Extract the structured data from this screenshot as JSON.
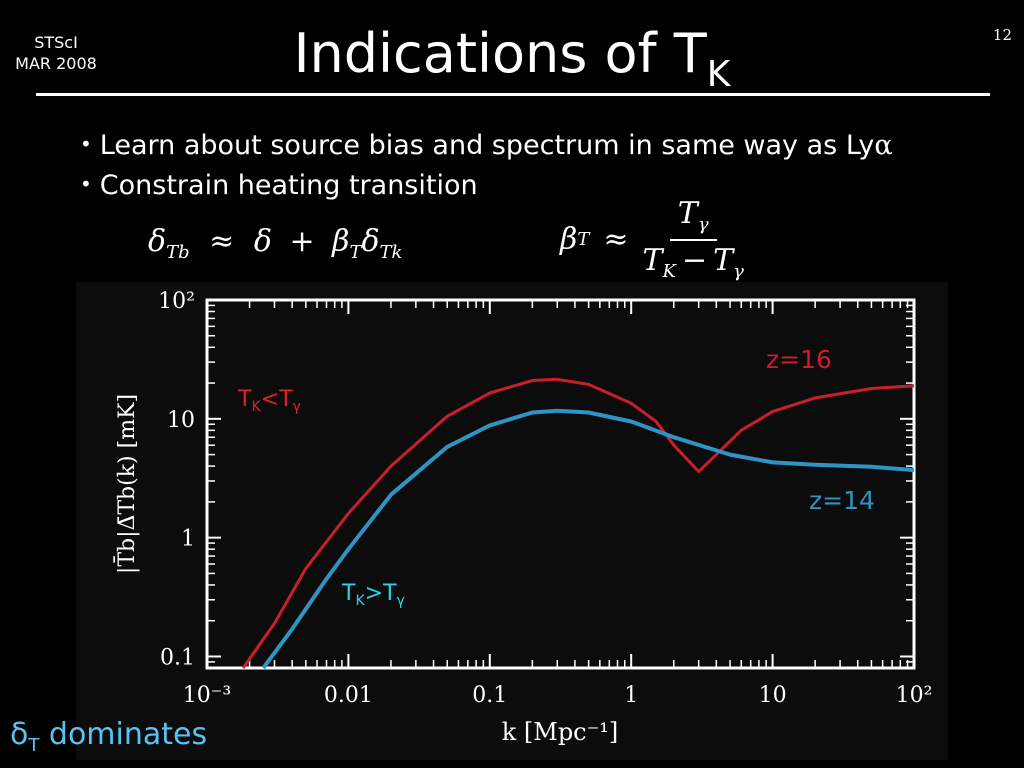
{
  "header": {
    "venue_line1": "STScI",
    "venue_line2": "MAR 2008",
    "title": "Indications of T",
    "title_subscript": "K",
    "page_number": "12"
  },
  "bullets": [
    {
      "text": "Learn about source bias and spectrum in same way as Ly",
      "symbol": "α"
    },
    {
      "text": "Constrain heating transition",
      "symbol": ""
    }
  ],
  "equations": {
    "eq1": {
      "lhs_base": "δ",
      "lhs_sub": "Tb",
      "rel": "≈",
      "rhs_a": "δ",
      "plus": "+",
      "rhs_b": "β",
      "rhs_b_sub": "T",
      "rhs_c": "δ",
      "rhs_c_sub": "Tk"
    },
    "eq2": {
      "lhs": "β",
      "lhs_sub": "T",
      "rel": "≈",
      "num": "T",
      "num_sub": "γ",
      "den_a": "T",
      "den_a_sub": "K",
      "den_minus": "−",
      "den_b": "T",
      "den_b_sub": "γ"
    }
  },
  "footer": {
    "symbol": "δ",
    "symbol_sub": "T",
    "text": "dominates"
  },
  "chart_data": {
    "type": "line",
    "xscale": "log",
    "yscale": "log",
    "xlim": [
      0.001,
      100
    ],
    "ylim": [
      0.08,
      100
    ],
    "xticks": [
      "10⁻³",
      "0.01",
      "0.1",
      "1",
      "10",
      "10²"
    ],
    "yticks": [
      "0.1",
      "1",
      "10",
      "10²"
    ],
    "xlabel": "k [Mpc⁻¹]",
    "ylabel": "|T̄b|Δ̄Tb(k) [mK]",
    "series": [
      {
        "name": "z=16",
        "color": "#c81e2e",
        "x": [
          0.0018,
          0.003,
          0.005,
          0.01,
          0.02,
          0.05,
          0.1,
          0.2,
          0.3,
          0.5,
          1.0,
          1.5,
          2.0,
          3.0,
          4.0,
          6.0,
          10,
          20,
          50,
          100
        ],
        "y": [
          0.08,
          0.19,
          0.55,
          1.6,
          4.0,
          10.5,
          16.5,
          21.0,
          21.5,
          19.5,
          13.5,
          9.5,
          6.0,
          3.6,
          5.0,
          8.0,
          11.5,
          15.0,
          18.0,
          19.0
        ]
      },
      {
        "name": "z=14",
        "color": "#2f93c4",
        "x": [
          0.0025,
          0.004,
          0.007,
          0.01,
          0.02,
          0.05,
          0.1,
          0.2,
          0.3,
          0.5,
          1.0,
          2.0,
          5.0,
          10,
          20,
          50,
          100
        ],
        "y": [
          0.08,
          0.17,
          0.45,
          0.8,
          2.3,
          5.8,
          8.8,
          11.3,
          11.7,
          11.3,
          9.5,
          7.0,
          5.0,
          4.3,
          4.1,
          3.95,
          3.7
        ]
      }
    ],
    "annotations": [
      {
        "text": "z=16",
        "color": "#c81e2e"
      },
      {
        "text": "z=14",
        "color": "#2f93c4"
      },
      {
        "text": "T",
        "sub": "K",
        "op": "<",
        "text2": "T",
        "sub2": "γ",
        "color": "#e0202a"
      },
      {
        "text": "T",
        "sub": "K",
        "op": ">",
        "text2": "T",
        "sub2": "γ",
        "color": "#28d4e8"
      }
    ]
  }
}
